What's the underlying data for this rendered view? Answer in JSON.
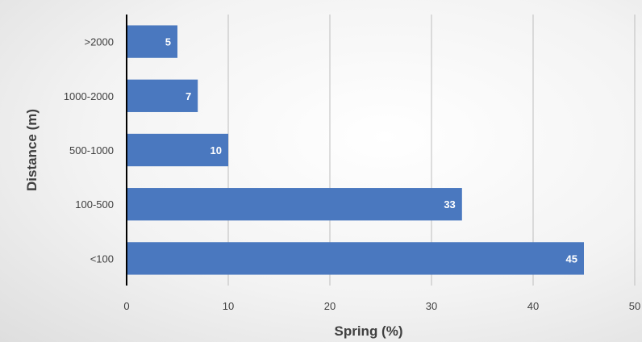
{
  "chart_data": {
    "type": "bar",
    "orientation": "horizontal",
    "categories": [
      "<100",
      "100-500",
      "500-1000",
      "1000-2000",
      ">2000"
    ],
    "values": [
      45,
      33,
      10,
      7,
      5
    ],
    "xlabel": "Spring (%)",
    "ylabel": "Distance (m)",
    "xlim": [
      0,
      50
    ],
    "xticks": [
      0,
      10,
      20,
      30,
      40,
      50
    ],
    "grid": "vertical",
    "data_labels": true,
    "bar_color": "#4a78bf"
  }
}
